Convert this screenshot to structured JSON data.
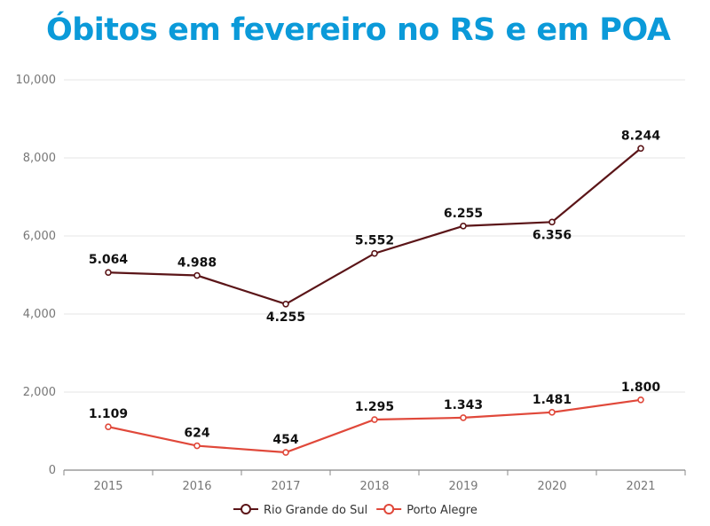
{
  "chart_data": {
    "type": "line",
    "title": "Óbitos em fevereiro no RS e em POA",
    "xlabel": "",
    "ylabel": "",
    "categories": [
      "2015",
      "2016",
      "2017",
      "2018",
      "2019",
      "2020",
      "2021"
    ],
    "ylim": [
      0,
      10000
    ],
    "yticks": [
      "0",
      "2,000",
      "4,000",
      "6,000",
      "8,000",
      "10,000"
    ],
    "ytick_values": [
      0,
      2000,
      4000,
      6000,
      8000,
      10000
    ],
    "grid": true,
    "legend_position": "bottom",
    "series": [
      {
        "name": "Rio Grande do Sul",
        "color": "#5b1518",
        "values": [
          5064,
          4988,
          4255,
          5552,
          6255,
          6356,
          8244
        ],
        "labels": [
          "5.064",
          "4.988",
          "4.255",
          "5.552",
          "6.255",
          "6.356",
          "8.244"
        ],
        "label_side": [
          "above",
          "above",
          "below",
          "above",
          "above",
          "below",
          "above"
        ]
      },
      {
        "name": "Porto Alegre",
        "color": "#e0483a",
        "values": [
          1109,
          624,
          454,
          1295,
          1343,
          1481,
          1800
        ],
        "labels": [
          "1.109",
          "624",
          "454",
          "1.295",
          "1.343",
          "1.481",
          "1.800"
        ],
        "label_side": [
          "above",
          "above",
          "above",
          "above",
          "above",
          "above",
          "above"
        ]
      }
    ]
  }
}
